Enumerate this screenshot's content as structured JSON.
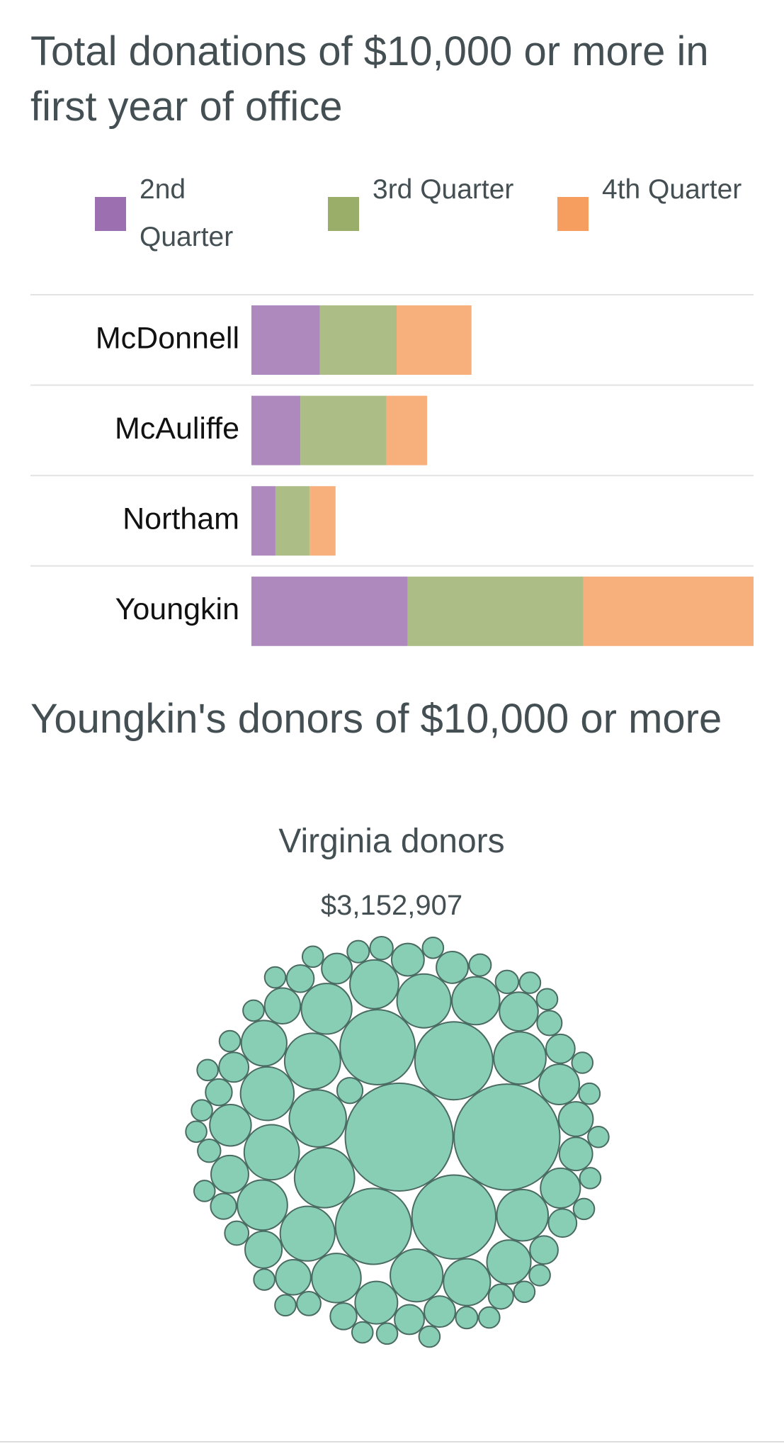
{
  "chart_data": [
    {
      "type": "stacked-bar",
      "title": "Total donations of $10,000 or more in first year of office",
      "categories": [
        "McDonnell",
        "McAuliffe",
        "Northam",
        "Youngkin"
      ],
      "series": [
        {
          "name": "2nd Quarter",
          "color": "#9b6fb0",
          "values": [
            74,
            53,
            26,
            169
          ]
        },
        {
          "name": "3rd Quarter",
          "color": "#9aae6a",
          "values": [
            83,
            93,
            37,
            190
          ]
        },
        {
          "name": "4th Quarter",
          "color": "#f59e5f",
          "values": [
            81,
            44,
            28,
            184
          ]
        }
      ],
      "xlim": [
        0,
        543
      ]
    },
    {
      "type": "bubble-pack",
      "title": "Youngkin's donors of $10,000 or more",
      "subtitle": "Virginia donors",
      "total": {
        "value": 3152907,
        "label": "$3,152,907"
      },
      "color": "#88ceb5",
      "edge_color": "#4a6b62",
      "values": [
        264000,
        255000,
        160000,
        138000,
        131000,
        128000,
        82000,
        74000,
        71000,
        69000,
        68000,
        66000,
        65000,
        63000,
        62000,
        60000,
        58000,
        57000,
        55000,
        54000,
        52000,
        50000,
        47000,
        44000,
        41000,
        39000,
        37000,
        36000,
        34000,
        32000,
        31000,
        29000,
        28000,
        27000,
        25000,
        24000,
        23000,
        22000,
        21000,
        20000,
        20000,
        19000,
        18000,
        18000,
        17000,
        16000,
        16000,
        15000,
        15000,
        14000,
        14000,
        13000,
        13000,
        12000,
        12000,
        12000,
        11000,
        11000,
        11000,
        10000,
        10000,
        10000,
        10000,
        10000,
        10000,
        10000,
        10000,
        10000,
        10000,
        10000,
        10000,
        10000,
        10000,
        10000,
        10000,
        10000,
        10000,
        10000,
        10000,
        10000,
        10000,
        10000,
        10000
      ]
    }
  ]
}
